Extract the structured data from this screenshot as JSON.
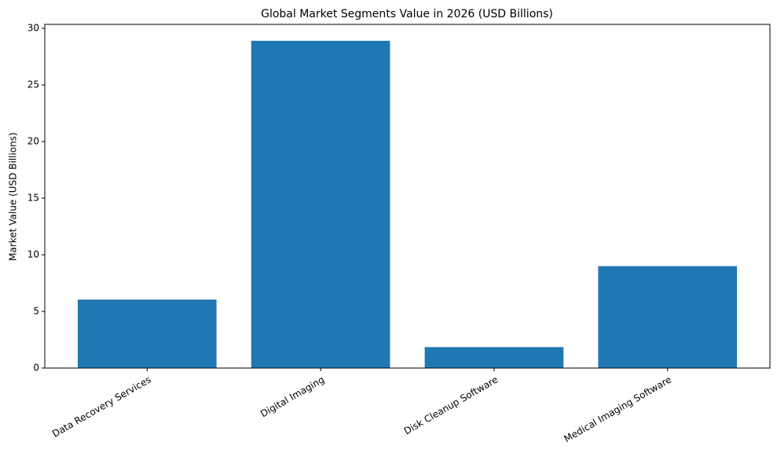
{
  "chart_data": {
    "type": "bar",
    "title": "Global Market Segments Value in 2026 (USD Billions)",
    "y_label": "Market Value (USD Billions)",
    "categories": [
      "Data Recovery Services",
      "Digital Imaging",
      "Disk Cleanup Software",
      "Medical Imaging Software"
    ],
    "values": [
      6.05,
      28.9,
      1.85,
      9.0
    ],
    "color": "#1f77b4",
    "ylim": [
      0,
      30.35
    ],
    "yticks": [
      0,
      5,
      10,
      15,
      20,
      25,
      30
    ],
    "grid": false
  }
}
